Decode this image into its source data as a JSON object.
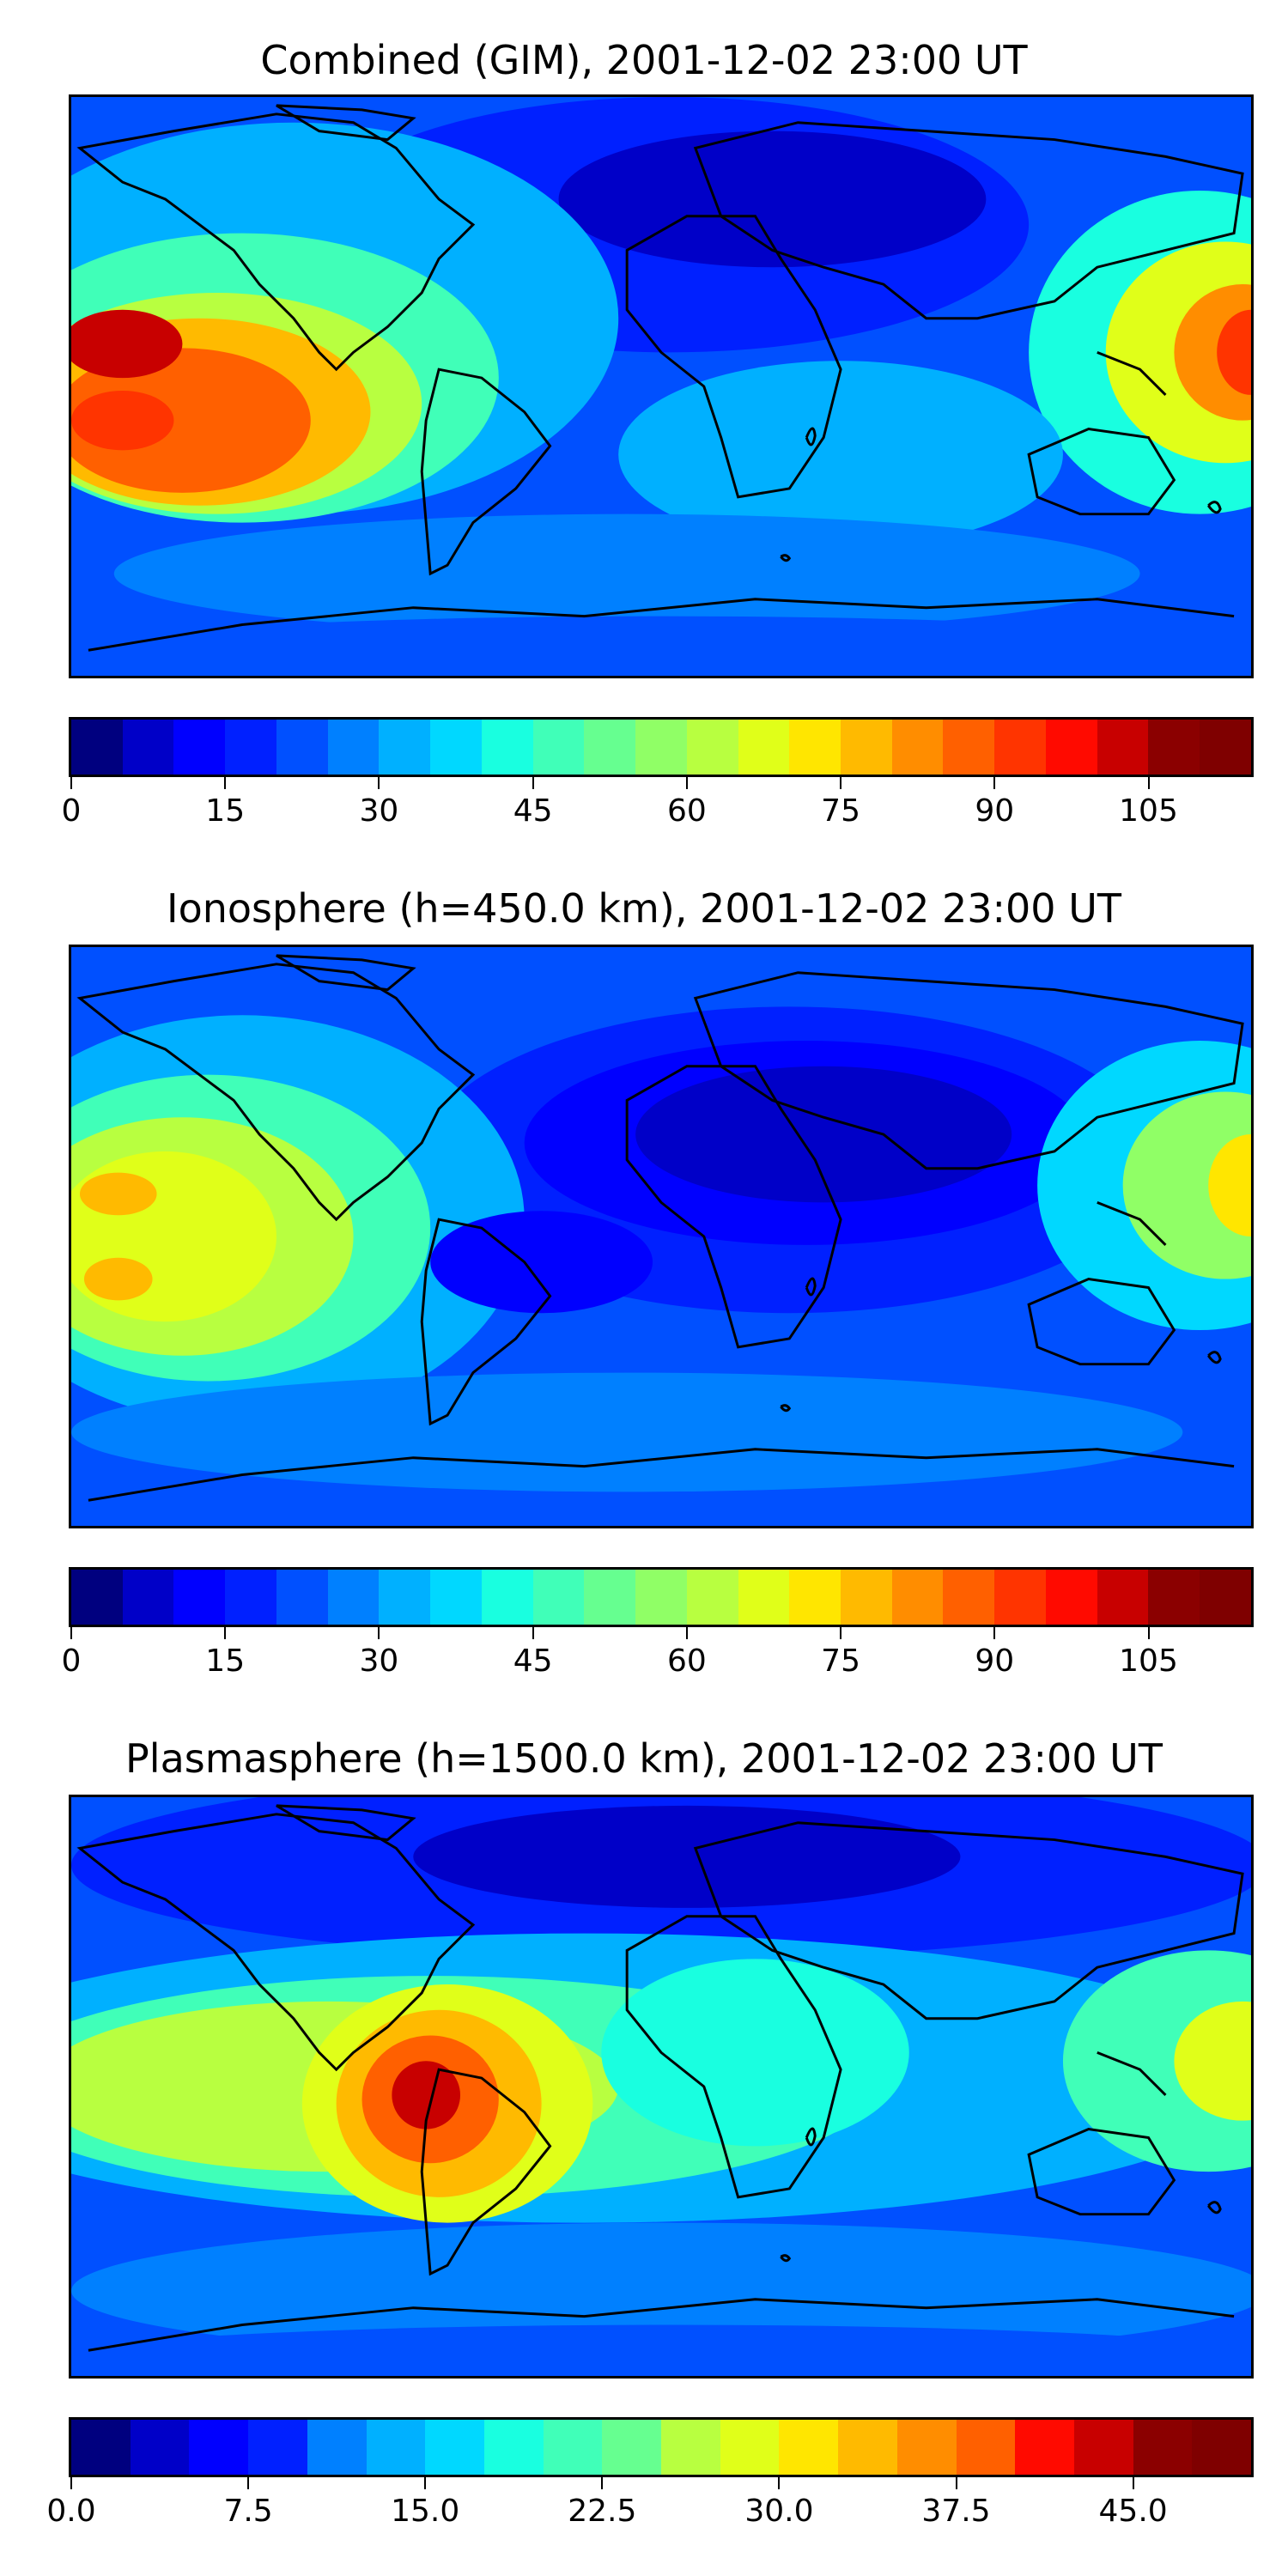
{
  "panels": [
    {
      "title": "Combined (GIM), 2001-12-02 23:00 UT",
      "colorbar": {
        "min": 0,
        "max": 115,
        "step": 5,
        "tick_labels": [
          "0",
          "15",
          "30",
          "45",
          "60",
          "75",
          "90",
          "105"
        ],
        "tick_values": [
          0,
          15,
          30,
          45,
          60,
          75,
          90,
          105
        ]
      }
    },
    {
      "title": "Ionosphere  (h=450.0 km), 2001-12-02 23:00 UT",
      "colorbar": {
        "min": 0,
        "max": 115,
        "step": 5,
        "tick_labels": [
          "0",
          "15",
          "30",
          "45",
          "60",
          "75",
          "90",
          "105"
        ],
        "tick_values": [
          0,
          15,
          30,
          45,
          60,
          75,
          90,
          105
        ]
      }
    },
    {
      "title": "Plasmasphere (h=1500.0 km), 2001-12-02 23:00 UT",
      "colorbar": {
        "min": 0,
        "max": 50,
        "step": 2.5,
        "tick_labels": [
          "0.0",
          "7.5",
          "15.0",
          "22.5",
          "30.0",
          "37.5",
          "45.0"
        ],
        "tick_values": [
          0,
          7.5,
          15,
          22.5,
          30,
          37.5,
          45
        ]
      }
    }
  ],
  "colormap": "jet",
  "jet_colors": [
    "#00007f",
    "#0000c8",
    "#0000ff",
    "#0020ff",
    "#0050ff",
    "#0080ff",
    "#00b0ff",
    "#00d8ff",
    "#19ffe0",
    "#40ffb8",
    "#66ff90",
    "#90ff66",
    "#b8ff40",
    "#e0ff19",
    "#ffe600",
    "#ffba00",
    "#ff8d00",
    "#ff6000",
    "#ff3400",
    "#ff0a00",
    "#c80000",
    "#8b0000",
    "#7f0000"
  ]
}
